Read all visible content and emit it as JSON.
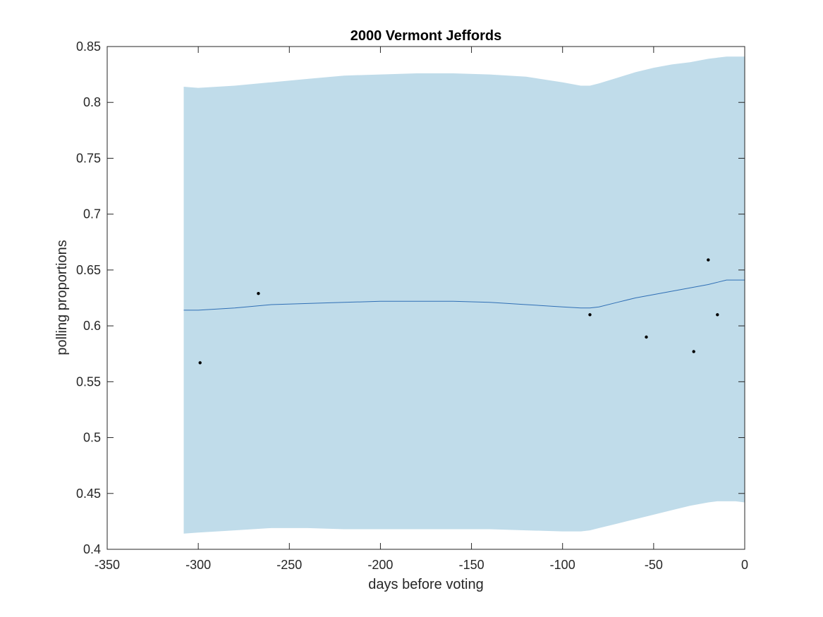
{
  "chart_data": {
    "type": "line",
    "title": "2000 Vermont Jeffords",
    "xlabel": "days before voting",
    "ylabel": "polling proportions",
    "xlim": [
      -350,
      0
    ],
    "ylim": [
      0.4,
      0.85
    ],
    "x_ticks": [
      -350,
      -300,
      -250,
      -200,
      -150,
      -100,
      -50,
      0
    ],
    "x_tick_labels": [
      "-350",
      "-300",
      "-250",
      "-200",
      "-150",
      "-100",
      "-50",
      "0"
    ],
    "y_ticks": [
      0.4,
      0.45,
      0.5,
      0.55,
      0.6,
      0.65,
      0.7,
      0.75,
      0.8,
      0.85
    ],
    "y_tick_labels": [
      "0.4",
      "0.45",
      "0.5",
      "0.55",
      "0.6",
      "0.65",
      "0.7",
      "0.75",
      "0.8",
      "0.85"
    ],
    "grid": false,
    "box": true,
    "band": {
      "color": "#c0dcea",
      "x": [
        -308,
        -300,
        -280,
        -260,
        -240,
        -220,
        -200,
        -180,
        -160,
        -140,
        -120,
        -100,
        -90,
        -85,
        -80,
        -70,
        -60,
        -50,
        -40,
        -30,
        -20,
        -15,
        -10,
        -5,
        0
      ],
      "upper": [
        0.814,
        0.813,
        0.815,
        0.818,
        0.821,
        0.824,
        0.825,
        0.826,
        0.826,
        0.825,
        0.823,
        0.818,
        0.815,
        0.815,
        0.817,
        0.822,
        0.827,
        0.831,
        0.834,
        0.836,
        0.839,
        0.84,
        0.841,
        0.841,
        0.841
      ],
      "lower": [
        0.414,
        0.415,
        0.417,
        0.419,
        0.419,
        0.418,
        0.418,
        0.418,
        0.418,
        0.418,
        0.417,
        0.416,
        0.416,
        0.417,
        0.419,
        0.423,
        0.427,
        0.431,
        0.435,
        0.439,
        0.442,
        0.443,
        0.443,
        0.443,
        0.442
      ]
    },
    "series": [
      {
        "color": "#2f6fb5",
        "x": [
          -308,
          -300,
          -280,
          -260,
          -240,
          -220,
          -200,
          -180,
          -160,
          -140,
          -120,
          -100,
          -90,
          -85,
          -80,
          -70,
          -60,
          -50,
          -40,
          -30,
          -20,
          -15,
          -10,
          -5,
          0
        ],
        "values": [
          0.614,
          0.614,
          0.616,
          0.619,
          0.62,
          0.621,
          0.622,
          0.622,
          0.622,
          0.621,
          0.619,
          0.617,
          0.616,
          0.616,
          0.617,
          0.621,
          0.625,
          0.628,
          0.631,
          0.634,
          0.637,
          0.639,
          0.641,
          0.641,
          0.641
        ]
      }
    ],
    "points": {
      "color": "#000000",
      "x": [
        -299,
        -267,
        -85,
        -54,
        -28,
        -20,
        -15
      ],
      "values": [
        0.567,
        0.629,
        0.61,
        0.59,
        0.577,
        0.659,
        0.61
      ]
    }
  }
}
